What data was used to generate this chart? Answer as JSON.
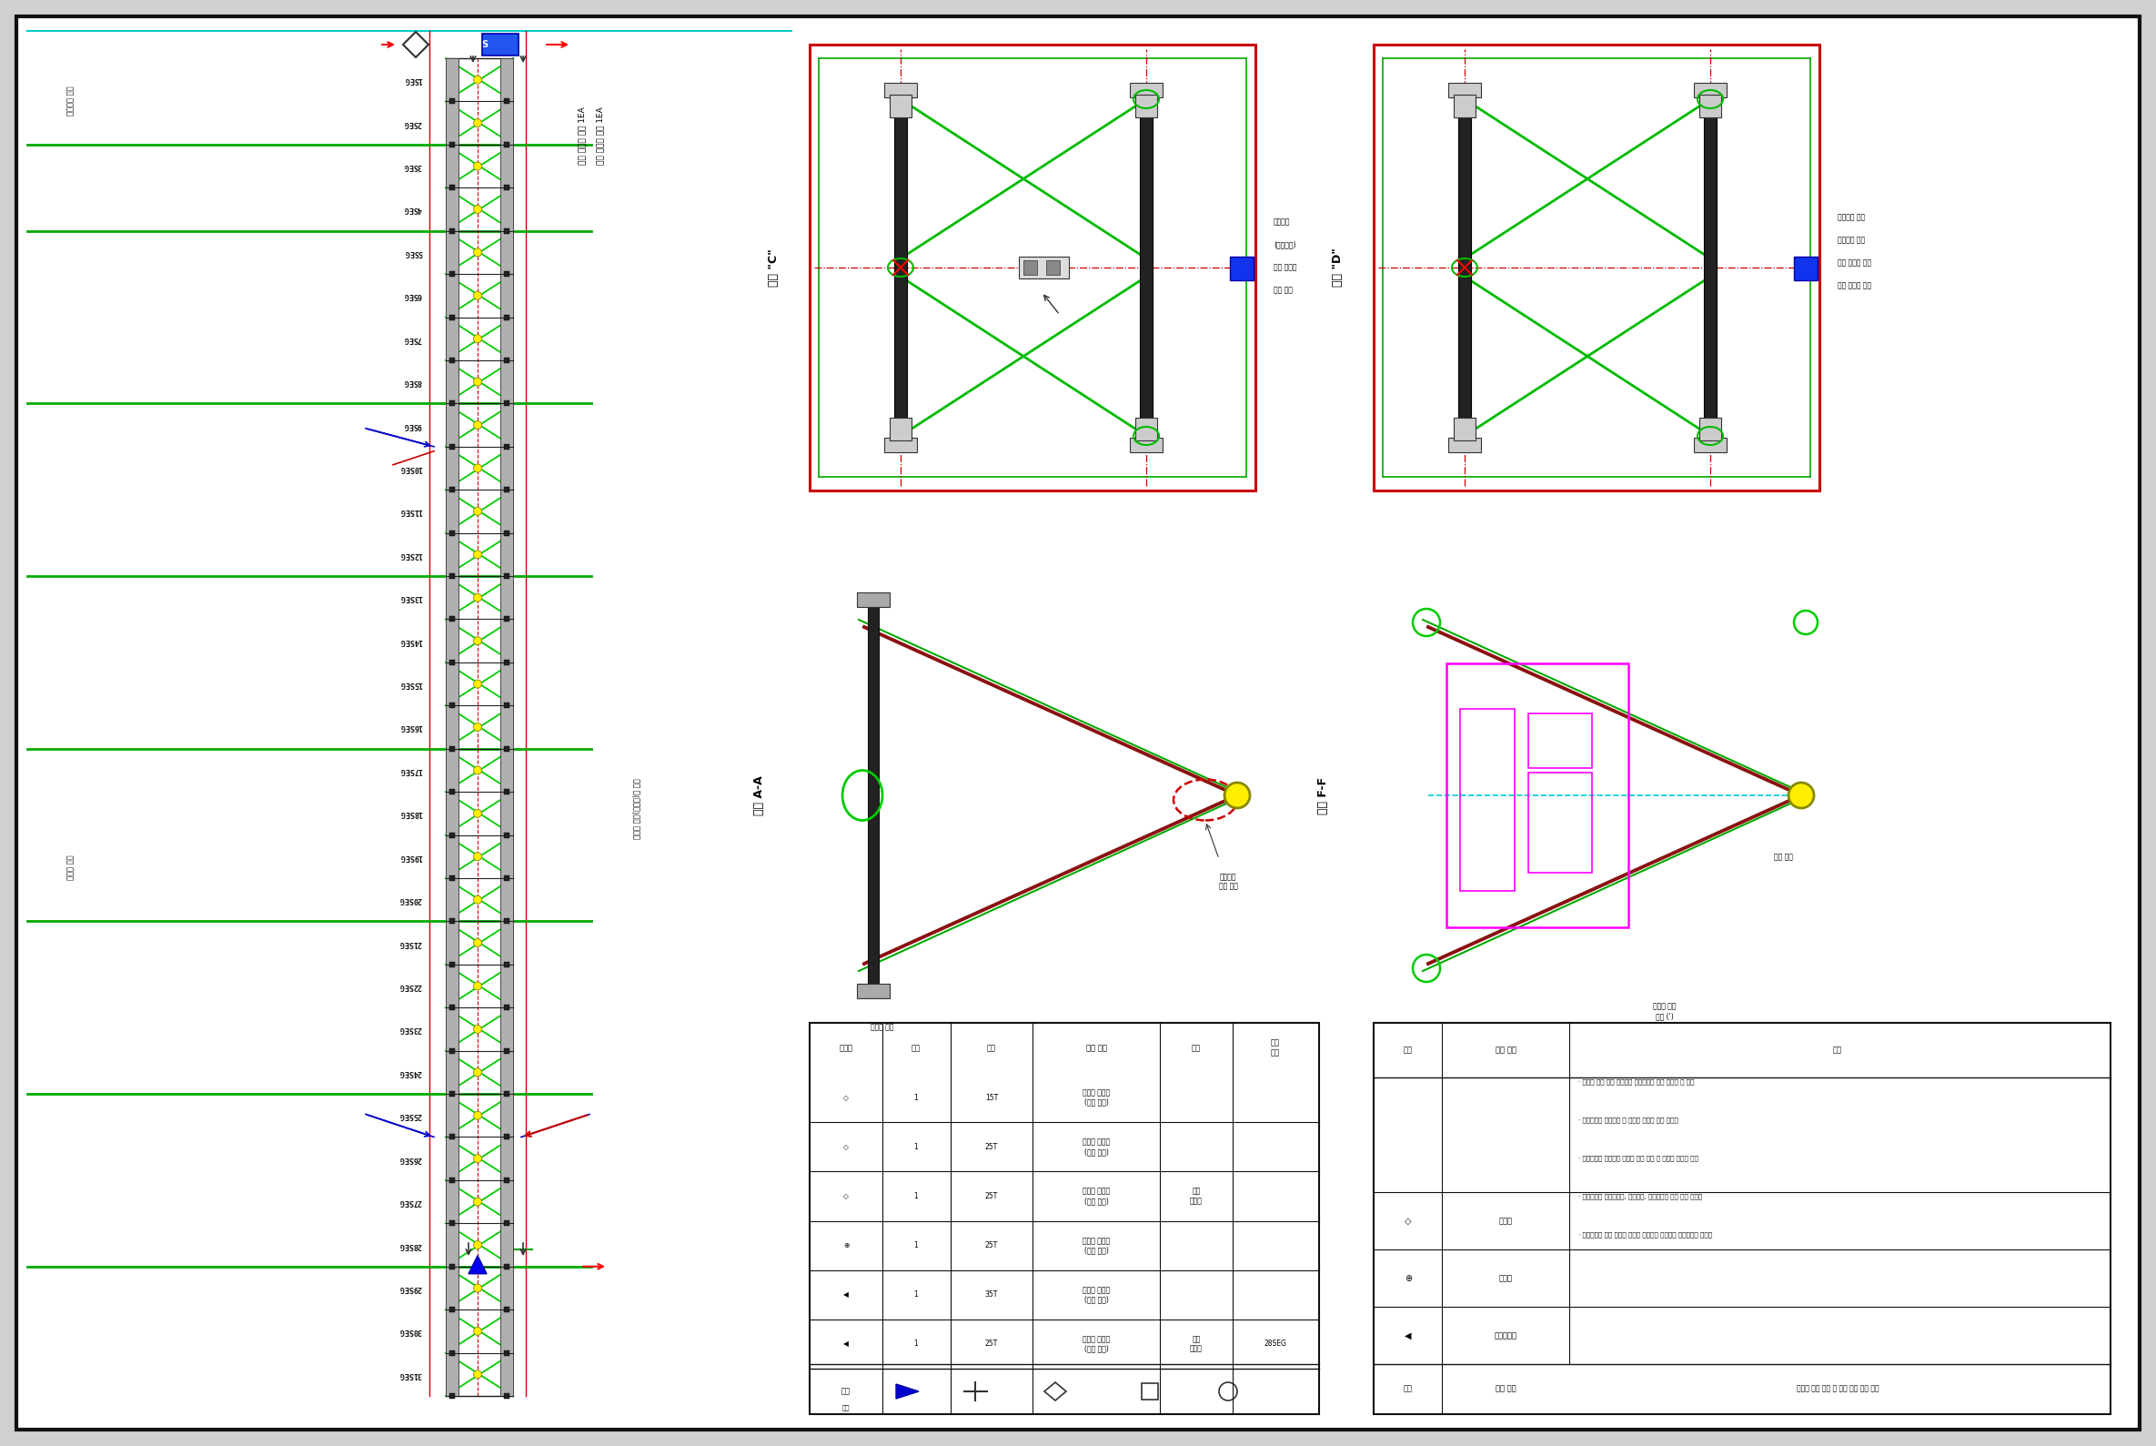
{
  "segments": [
    "1SEG",
    "2SEG",
    "3SEG",
    "4SEG",
    "5SEG",
    "6SEG",
    "7SEG",
    "8SEG",
    "9SEG",
    "10SEG",
    "11SEG",
    "12SEG",
    "13SEG",
    "14SEG",
    "15SEG",
    "16SEG",
    "17SEG",
    "18SEG",
    "19SEG",
    "20SEG",
    "21SEG",
    "22SEG",
    "23SEG",
    "24SEG",
    "25SEG",
    "26SEG",
    "27SEG",
    "28SEG",
    "29SEG",
    "30SEG",
    "31SEG"
  ],
  "green_line_segs": [
    2,
    4,
    8,
    12,
    16,
    20,
    24,
    28
  ],
  "section_A_label": "상세 \"C\"",
  "section_B_label": "상세 \"D\"",
  "cross_AA": "단면 A-A",
  "cross_FF": "단면 F-F",
  "note1_line1": "교정 데이터 로거 1EA",
  "note1_line2": "전진 데이터 로거 1EA",
  "label_top_left": "가속도계 위치",
  "label_bot_left": "수직계 위치",
  "annot_note_right": "연장물 설치(수준계)의 장소"
}
